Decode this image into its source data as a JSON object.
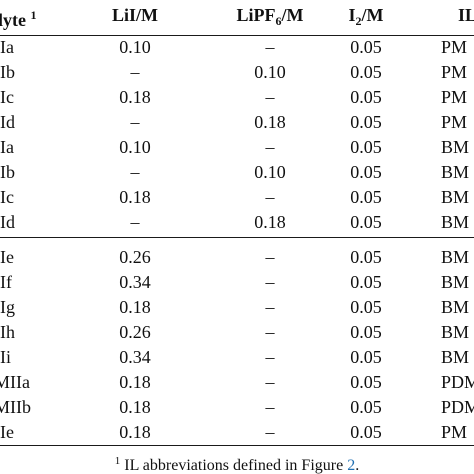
{
  "table": {
    "headers": {
      "electrolyte": "lyte",
      "electrolyte_sup": "1",
      "lii_a": "LiI",
      "lii_b": "/M",
      "lipf6_a": "LiPF",
      "lipf6_sub": "6",
      "lipf6_b": "/M",
      "i2_a": "I",
      "i2_sub": "2",
      "i2_b": "/M",
      "il": "IL"
    },
    "rows": [
      {
        "name": "IIa",
        "lii": "0.10",
        "lipf6": "–",
        "i2": "0.05",
        "il": "PM"
      },
      {
        "name": "IIb",
        "lii": "–",
        "lipf6": "0.10",
        "i2": "0.05",
        "il": "PM"
      },
      {
        "name": "IIc",
        "lii": "0.18",
        "lipf6": "–",
        "i2": "0.05",
        "il": "PM"
      },
      {
        "name": "IId",
        "lii": "–",
        "lipf6": "0.18",
        "i2": "0.05",
        "il": "PM"
      },
      {
        "name": "IIa",
        "lii": "0.10",
        "lipf6": "–",
        "i2": "0.05",
        "il": "BM"
      },
      {
        "name": "IIb",
        "lii": "–",
        "lipf6": "0.10",
        "i2": "0.05",
        "il": "BM"
      },
      {
        "name": "IIc",
        "lii": "0.18",
        "lipf6": "–",
        "i2": "0.05",
        "il": "BM"
      },
      {
        "name": "IId",
        "lii": "–",
        "lipf6": "0.18",
        "i2": "0.05",
        "il": "BM"
      },
      {
        "name": "IIe",
        "lii": "0.26",
        "lipf6": "–",
        "i2": "0.05",
        "il": "BM"
      },
      {
        "name": "IIf",
        "lii": "0.34",
        "lipf6": "–",
        "i2": "0.05",
        "il": "BM"
      },
      {
        "name": "IIg",
        "lii": "0.18",
        "lipf6": "–",
        "i2": "0.05",
        "il": "BM"
      },
      {
        "name": "IIh",
        "lii": "0.26",
        "lipf6": "–",
        "i2": "0.05",
        "il": "BM"
      },
      {
        "name": "IIi",
        "lii": "0.34",
        "lipf6": "–",
        "i2": "0.05",
        "il": "BM"
      },
      {
        "name": "MIIa",
        "lii": "0.18",
        "lipf6": "–",
        "i2": "0.05",
        "il": "PDM"
      },
      {
        "name": "MIIb",
        "lii": "0.18",
        "lipf6": "–",
        "i2": "0.05",
        "il": "PDM"
      },
      {
        "name": "IIe",
        "lii": "0.18",
        "lipf6": "–",
        "i2": "0.05",
        "il": "PM"
      }
    ]
  },
  "footnote": {
    "marker": "1",
    "text": "IL abbreviations defined in Figure",
    "link": "2",
    "end": "."
  },
  "colors": {
    "text": "#111111",
    "rule": "#1a1a1a",
    "link": "#1f6fb2"
  }
}
